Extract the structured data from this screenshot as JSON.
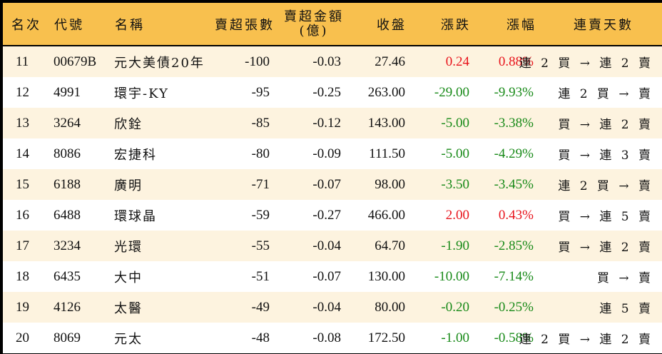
{
  "colors": {
    "header_bg": "#f8c04e",
    "row_odd_bg": "#fdf3df",
    "row_even_bg": "#ffffff",
    "border": "#000000",
    "up": "#e8141c",
    "down": "#188a18"
  },
  "header": {
    "rank": "名次",
    "code": "代號",
    "name": "名稱",
    "net_sell_lots": "賣超張數",
    "net_sell_amount_line1": "賣超金額",
    "net_sell_amount_line2": "(億)",
    "close": "收盤",
    "change": "漲跌",
    "change_pct": "漲幅",
    "streak": "連賣天數"
  },
  "rows": [
    {
      "rank": "11",
      "code": "00679B",
      "name": "元大美債20年",
      "lots": "-100",
      "amount": "-0.03",
      "close": "27.46",
      "change": "0.24",
      "pct": "0.88%",
      "direction": "up",
      "streak": "連 2 買 → 連 2 賣"
    },
    {
      "rank": "12",
      "code": "4991",
      "name": "環宇-KY",
      "lots": "-95",
      "amount": "-0.25",
      "close": "263.00",
      "change": "-29.00",
      "pct": "-9.93%",
      "direction": "down",
      "streak": "連 2 買 → 賣"
    },
    {
      "rank": "13",
      "code": "3264",
      "name": "欣銓",
      "lots": "-85",
      "amount": "-0.12",
      "close": "143.00",
      "change": "-5.00",
      "pct": "-3.38%",
      "direction": "down",
      "streak": "買 → 連 2 賣"
    },
    {
      "rank": "14",
      "code": "8086",
      "name": "宏捷科",
      "lots": "-80",
      "amount": "-0.09",
      "close": "111.50",
      "change": "-5.00",
      "pct": "-4.29%",
      "direction": "down",
      "streak": "買 → 連 3 賣"
    },
    {
      "rank": "15",
      "code": "6188",
      "name": "廣明",
      "lots": "-71",
      "amount": "-0.07",
      "close": "98.00",
      "change": "-3.50",
      "pct": "-3.45%",
      "direction": "down",
      "streak": "連 2 買 → 賣"
    },
    {
      "rank": "16",
      "code": "6488",
      "name": "環球晶",
      "lots": "-59",
      "amount": "-0.27",
      "close": "466.00",
      "change": "2.00",
      "pct": "0.43%",
      "direction": "up",
      "streak": "買 → 連 5 賣"
    },
    {
      "rank": "17",
      "code": "3234",
      "name": "光環",
      "lots": "-55",
      "amount": "-0.04",
      "close": "64.70",
      "change": "-1.90",
      "pct": "-2.85%",
      "direction": "down",
      "streak": "買 → 連 2 賣"
    },
    {
      "rank": "18",
      "code": "6435",
      "name": "大中",
      "lots": "-51",
      "amount": "-0.07",
      "close": "130.00",
      "change": "-10.00",
      "pct": "-7.14%",
      "direction": "down",
      "streak": "買 → 賣"
    },
    {
      "rank": "19",
      "code": "4126",
      "name": "太醫",
      "lots": "-49",
      "amount": "-0.04",
      "close": "80.00",
      "change": "-0.20",
      "pct": "-0.25%",
      "direction": "down",
      "streak": "連 5 賣"
    },
    {
      "rank": "20",
      "code": "8069",
      "name": "元太",
      "lots": "-48",
      "amount": "-0.08",
      "close": "172.50",
      "change": "-1.00",
      "pct": "-0.58%",
      "direction": "down",
      "streak": "連 2 買 → 連 2 賣"
    }
  ]
}
